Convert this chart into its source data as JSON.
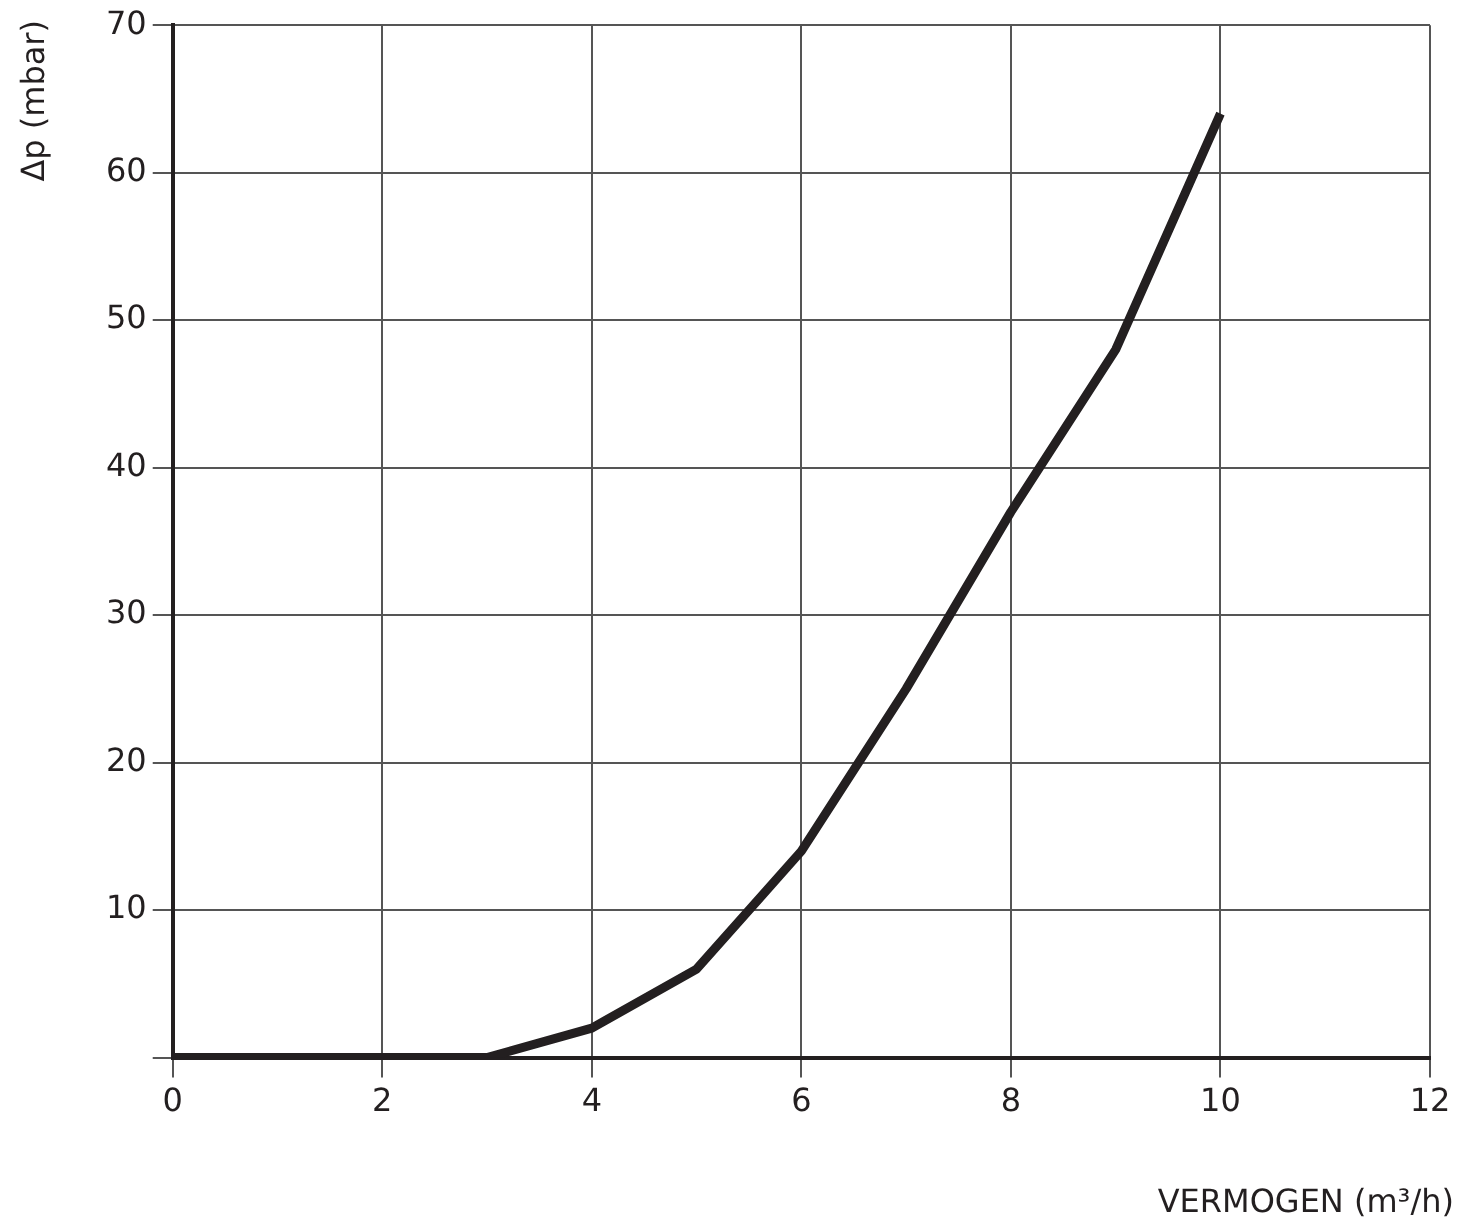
{
  "chart_data": {
    "type": "line",
    "xlabel": "VERMOGEN (m³/h)",
    "ylabel": "Δp (mbar)",
    "x": [
      0,
      3,
      4,
      5,
      6,
      7,
      8,
      9,
      10
    ],
    "series": [
      {
        "color": "#231f20",
        "values": [
          0,
          0,
          2,
          6,
          14,
          25,
          37,
          48,
          64
        ]
      }
    ],
    "xlim": [
      0,
      12
    ],
    "xticks": [
      0,
      2,
      4,
      6,
      8,
      10,
      12
    ],
    "ylim": [
      0,
      70
    ],
    "yticks": [
      {
        "value": 0,
        "label": null
      },
      10,
      20,
      30,
      40,
      50,
      60,
      70
    ],
    "grid": true,
    "legend": false,
    "marker": "none",
    "line_style": "solid"
  }
}
